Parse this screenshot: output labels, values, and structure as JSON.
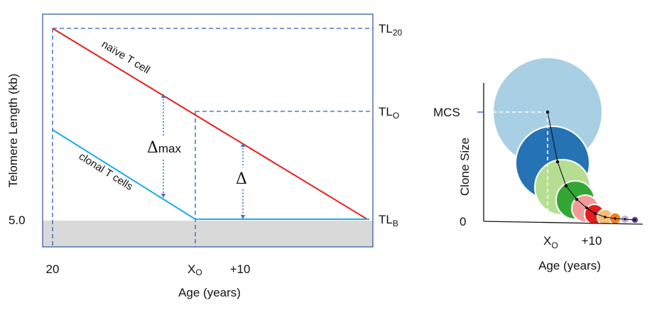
{
  "left_panel": {
    "ylabel": "Telomere Length (kb)",
    "xlabel": "Age (years)",
    "y_tick": "5.0",
    "x_ticks": {
      "start": "20",
      "xo_main": "X",
      "xo_sub": "O",
      "plus10": "+10"
    },
    "right_labels": {
      "tl20_main": "TL",
      "tl20_sub": "20",
      "tlo_main": "TL",
      "tlo_sub": "O",
      "tlb_main": "TL",
      "tlb_sub": "B"
    },
    "naive_label": "naïve T cell",
    "clonal_label": "clonal T cells",
    "delta_max_main": "Δ",
    "delta_max_sub": "max",
    "delta": "Δ"
  },
  "right_panel": {
    "ylabel": "Clone Size",
    "xlabel": "Age (years)",
    "y_ticks": {
      "top": "MCS",
      "zero": "0"
    },
    "x_ticks": {
      "xo_main": "X",
      "xo_sub": "O",
      "plus10": "+10"
    }
  },
  "colors": {
    "naive": "#e8201e",
    "clonal": "#19aee6",
    "dashed": "#2f5fb8",
    "arrow": "#4472c4",
    "frame": "#3a5f9e",
    "shade": "#d9d9d9",
    "circles": [
      "#a9cfe4",
      "#2573b5",
      "#b5de92",
      "#34a635",
      "#f59a9a",
      "#e31c1c",
      "#fbbd73",
      "#f47f1e",
      "#c7b3d6",
      "#6a3d9a"
    ]
  }
}
